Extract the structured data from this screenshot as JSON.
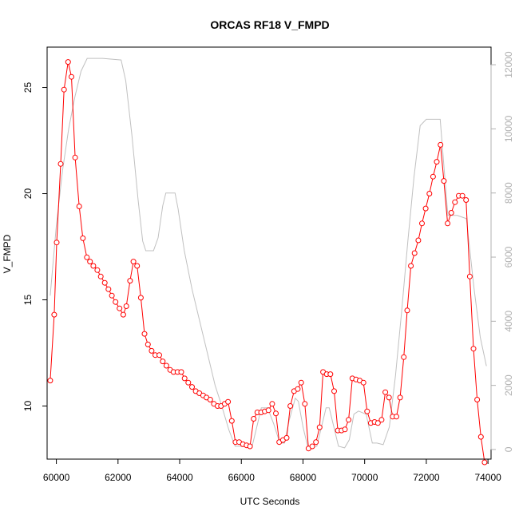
{
  "chart_data": {
    "type": "line",
    "title": "ORCAS RF18 V_FMPD",
    "xlabel": "UTC Seconds",
    "ylabel": "V_FMPD",
    "xlim": [
      59700,
      74100
    ],
    "ylim": [
      7.5,
      26.9
    ],
    "x_ticks": [
      60000,
      62000,
      64000,
      66000,
      68000,
      70000,
      72000,
      74000
    ],
    "x_tick_labels": [
      "60000",
      "62000",
      "64000",
      "66000",
      "68000",
      "70000",
      "72000",
      "74000"
    ],
    "y_ticks": [
      10,
      15,
      20,
      25
    ],
    "y_tick_labels": [
      "10",
      "15",
      "20",
      "25"
    ],
    "secondary_ylim": [
      -300,
      12550
    ],
    "secondary_y_ticks": [
      0,
      2000,
      4000,
      6000,
      8000,
      10000,
      12000
    ],
    "secondary_y_tick_labels": [
      "0",
      "2000",
      "4000",
      "6000",
      "8000",
      "10000",
      "12000"
    ],
    "grid": false,
    "series": [
      {
        "color": "#ff0000",
        "style": "line+open-circles",
        "axis": "left",
        "points": [
          [
            59800,
            11.2
          ],
          [
            59930,
            14.3
          ],
          [
            60010,
            17.7
          ],
          [
            60140,
            21.4
          ],
          [
            60250,
            24.9
          ],
          [
            60380,
            26.2
          ],
          [
            60490,
            25.5
          ],
          [
            60610,
            21.7
          ],
          [
            60740,
            19.4
          ],
          [
            60860,
            17.9
          ],
          [
            60990,
            17.0
          ],
          [
            61090,
            16.8
          ],
          [
            61200,
            16.6
          ],
          [
            61330,
            16.4
          ],
          [
            61440,
            16.1
          ],
          [
            61570,
            15.8
          ],
          [
            61690,
            15.5
          ],
          [
            61800,
            15.2
          ],
          [
            61920,
            14.9
          ],
          [
            62050,
            14.6
          ],
          [
            62170,
            14.3
          ],
          [
            62270,
            14.7
          ],
          [
            62390,
            15.9
          ],
          [
            62500,
            16.8
          ],
          [
            62620,
            16.6
          ],
          [
            62740,
            15.1
          ],
          [
            62860,
            13.4
          ],
          [
            62970,
            12.9
          ],
          [
            63090,
            12.6
          ],
          [
            63210,
            12.4
          ],
          [
            63340,
            12.4
          ],
          [
            63450,
            12.1
          ],
          [
            63570,
            11.9
          ],
          [
            63690,
            11.7
          ],
          [
            63800,
            11.6
          ],
          [
            63930,
            11.6
          ],
          [
            64050,
            11.6
          ],
          [
            64160,
            11.3
          ],
          [
            64280,
            11.1
          ],
          [
            64400,
            10.9
          ],
          [
            64520,
            10.7
          ],
          [
            64640,
            10.6
          ],
          [
            64760,
            10.5
          ],
          [
            64870,
            10.4
          ],
          [
            64990,
            10.3
          ],
          [
            65110,
            10.1
          ],
          [
            65230,
            10.0
          ],
          [
            65340,
            10.0
          ],
          [
            65460,
            10.1
          ],
          [
            65570,
            10.2
          ],
          [
            65690,
            9.3
          ],
          [
            65810,
            8.3
          ],
          [
            65930,
            8.3
          ],
          [
            66050,
            8.2
          ],
          [
            66170,
            8.15
          ],
          [
            66280,
            8.1
          ],
          [
            66400,
            9.4
          ],
          [
            66520,
            9.7
          ],
          [
            66640,
            9.7
          ],
          [
            66760,
            9.75
          ],
          [
            66880,
            9.8
          ],
          [
            67000,
            10.1
          ],
          [
            67120,
            9.65
          ],
          [
            67230,
            8.3
          ],
          [
            67350,
            8.4
          ],
          [
            67470,
            8.5
          ],
          [
            67590,
            10.0
          ],
          [
            67710,
            10.7
          ],
          [
            67830,
            10.8
          ],
          [
            67940,
            11.1
          ],
          [
            68060,
            10.1
          ],
          [
            68180,
            8.0
          ],
          [
            68300,
            8.1
          ],
          [
            68420,
            8.3
          ],
          [
            68540,
            9.0
          ],
          [
            68650,
            11.6
          ],
          [
            68770,
            11.5
          ],
          [
            68890,
            11.5
          ],
          [
            69010,
            10.7
          ],
          [
            69130,
            8.85
          ],
          [
            69250,
            8.85
          ],
          [
            69360,
            8.9
          ],
          [
            69480,
            9.35
          ],
          [
            69600,
            11.3
          ],
          [
            69720,
            11.25
          ],
          [
            69840,
            11.2
          ],
          [
            69960,
            11.1
          ],
          [
            70080,
            9.75
          ],
          [
            70200,
            9.2
          ],
          [
            70320,
            9.25
          ],
          [
            70430,
            9.2
          ],
          [
            70550,
            9.35
          ],
          [
            70670,
            10.65
          ],
          [
            70790,
            10.4
          ],
          [
            70910,
            9.5
          ],
          [
            71030,
            9.5
          ],
          [
            71150,
            10.4
          ],
          [
            71270,
            12.3
          ],
          [
            71380,
            14.5
          ],
          [
            71500,
            16.6
          ],
          [
            71620,
            17.2
          ],
          [
            71740,
            17.8
          ],
          [
            71860,
            18.6
          ],
          [
            71980,
            19.3
          ],
          [
            72100,
            20.0
          ],
          [
            72220,
            20.8
          ],
          [
            72340,
            21.5
          ],
          [
            72460,
            22.3
          ],
          [
            72570,
            20.6
          ],
          [
            72690,
            18.6
          ],
          [
            72810,
            19.1
          ],
          [
            72930,
            19.6
          ],
          [
            73050,
            19.9
          ],
          [
            73170,
            19.9
          ],
          [
            73290,
            19.7
          ],
          [
            73410,
            16.1
          ],
          [
            73530,
            12.7
          ],
          [
            73650,
            10.3
          ],
          [
            73770,
            8.55
          ],
          [
            73890,
            7.35
          ]
        ]
      },
      {
        "color": "#c0c0c0",
        "style": "line",
        "axis": "right",
        "points": [
          [
            59800,
            4800
          ],
          [
            60000,
            7000
          ],
          [
            60200,
            8700
          ],
          [
            60400,
            10000
          ],
          [
            60600,
            11000
          ],
          [
            60800,
            11800
          ],
          [
            61000,
            12200
          ],
          [
            61500,
            12200
          ],
          [
            62100,
            12150
          ],
          [
            62250,
            11500
          ],
          [
            62450,
            9800
          ],
          [
            62650,
            7800
          ],
          [
            62800,
            6500
          ],
          [
            62900,
            6200
          ],
          [
            63150,
            6200
          ],
          [
            63300,
            6600
          ],
          [
            63450,
            7600
          ],
          [
            63550,
            8000
          ],
          [
            63850,
            8000
          ],
          [
            63950,
            7500
          ],
          [
            64150,
            6200
          ],
          [
            64400,
            5000
          ],
          [
            64650,
            4000
          ],
          [
            64900,
            3000
          ],
          [
            65150,
            2000
          ],
          [
            65350,
            1400
          ],
          [
            65600,
            600
          ],
          [
            65800,
            100
          ],
          [
            66000,
            100
          ],
          [
            66350,
            100
          ],
          [
            66500,
            700
          ],
          [
            66650,
            1300
          ],
          [
            66850,
            1300
          ],
          [
            67050,
            800
          ],
          [
            67250,
            200
          ],
          [
            67400,
            200
          ],
          [
            67550,
            900
          ],
          [
            67750,
            1600
          ],
          [
            67850,
            1500
          ],
          [
            68000,
            700
          ],
          [
            68150,
            100
          ],
          [
            68450,
            100
          ],
          [
            68600,
            700
          ],
          [
            68750,
            1300
          ],
          [
            68850,
            1300
          ],
          [
            68950,
            900
          ],
          [
            69150,
            100
          ],
          [
            69350,
            50
          ],
          [
            69500,
            300
          ],
          [
            69650,
            1100
          ],
          [
            69800,
            1200
          ],
          [
            70050,
            1100
          ],
          [
            70250,
            200
          ],
          [
            70400,
            200
          ],
          [
            70600,
            150
          ],
          [
            70800,
            700
          ],
          [
            71000,
            2300
          ],
          [
            71200,
            4300
          ],
          [
            71400,
            6500
          ],
          [
            71600,
            8500
          ],
          [
            71800,
            10100
          ],
          [
            72000,
            10300
          ],
          [
            72200,
            10300
          ],
          [
            72450,
            10300
          ],
          [
            72700,
            7300
          ],
          [
            73000,
            7300
          ],
          [
            73300,
            7200
          ],
          [
            73550,
            5000
          ],
          [
            73750,
            3500
          ],
          [
            73950,
            2600
          ]
        ]
      }
    ]
  }
}
